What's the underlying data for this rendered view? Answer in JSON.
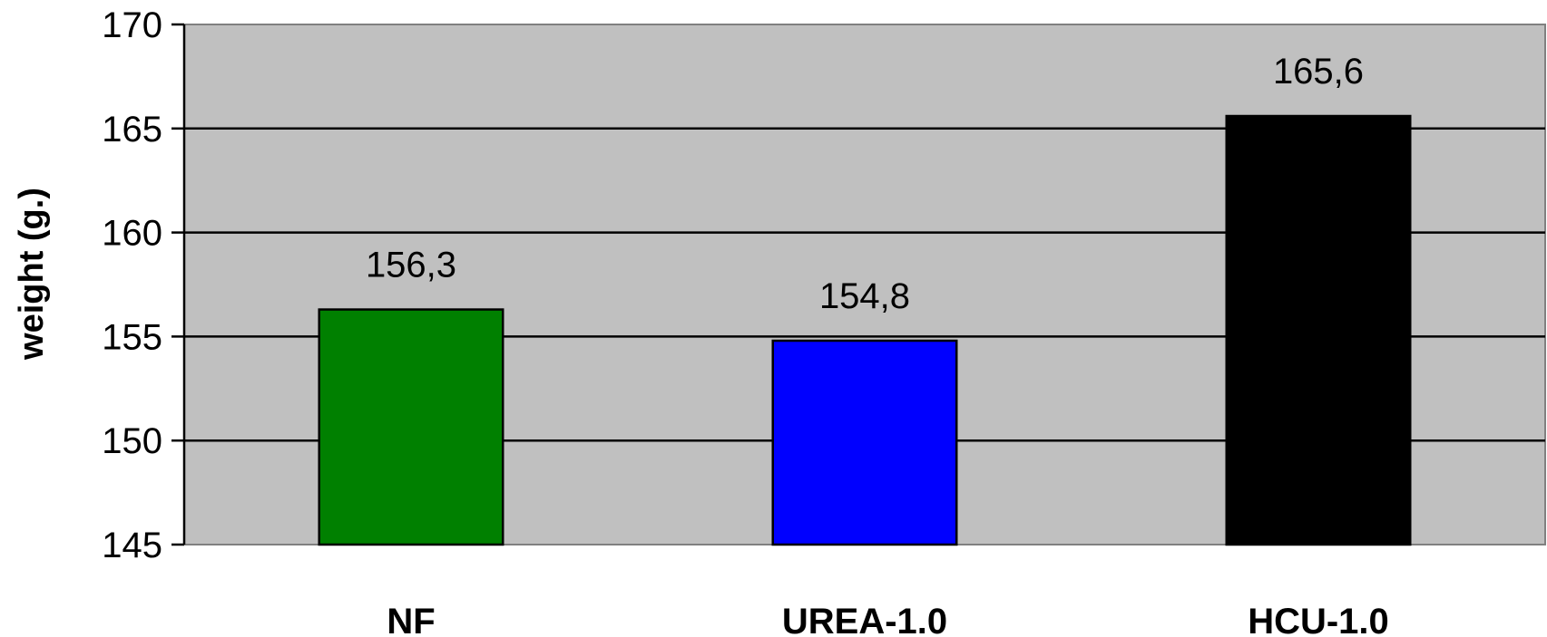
{
  "chart_data": {
    "type": "bar",
    "categories": [
      "NF",
      "UREA-1.0",
      "HCU-1.0"
    ],
    "values": [
      156.3,
      154.8,
      165.6
    ],
    "value_labels": [
      "156,3",
      "154,8",
      "165,6"
    ],
    "colors": [
      "#008000",
      "#0000ff",
      "#000000"
    ],
    "title": "",
    "xlabel": "",
    "ylabel": "weight (g.)",
    "ylim": [
      145,
      170
    ],
    "yticks": [
      145,
      150,
      155,
      160,
      165,
      170
    ],
    "ytick_labels": [
      "145",
      "150",
      "155",
      "160",
      "165",
      "170"
    ],
    "grid": true,
    "plot_background": "#c0c0c0"
  }
}
